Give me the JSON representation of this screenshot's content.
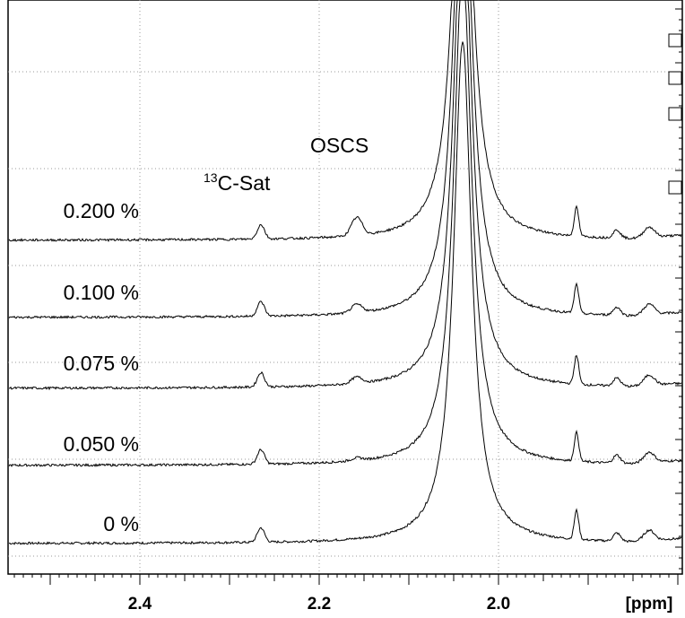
{
  "chart_data": {
    "type": "line",
    "title": "",
    "xlabel": "[ppm]",
    "ylabel": "",
    "x_reversed": true,
    "xlim": [
      2.55,
      1.79
    ],
    "x_ticks": [
      {
        "value": 2.4,
        "label": "2.4"
      },
      {
        "value": 2.2,
        "label": "2.2"
      },
      {
        "value": 2.0,
        "label": "2.0"
      }
    ],
    "grid": true,
    "annotations": [
      {
        "text_main": "C-Sat",
        "text_sup": "13",
        "x": 2.265
      },
      {
        "text_main": "OSCS",
        "text_sup": "",
        "x": 2.158
      }
    ],
    "peaks": {
      "main": 2.04,
      "c13_sat": 2.265,
      "oscs": 2.158,
      "p1": 1.913,
      "p2": 1.868,
      "p3": 1.832
    },
    "series": [
      {
        "name": "0 %",
        "oscs_height": 0.0
      },
      {
        "name": "0.050 %",
        "oscs_height": 3.0
      },
      {
        "name": "0.075 %",
        "oscs_height": 7.0
      },
      {
        "name": "0.100 %",
        "oscs_height": 9.0
      },
      {
        "name": "0.200 %",
        "oscs_height": 20.0
      }
    ]
  }
}
